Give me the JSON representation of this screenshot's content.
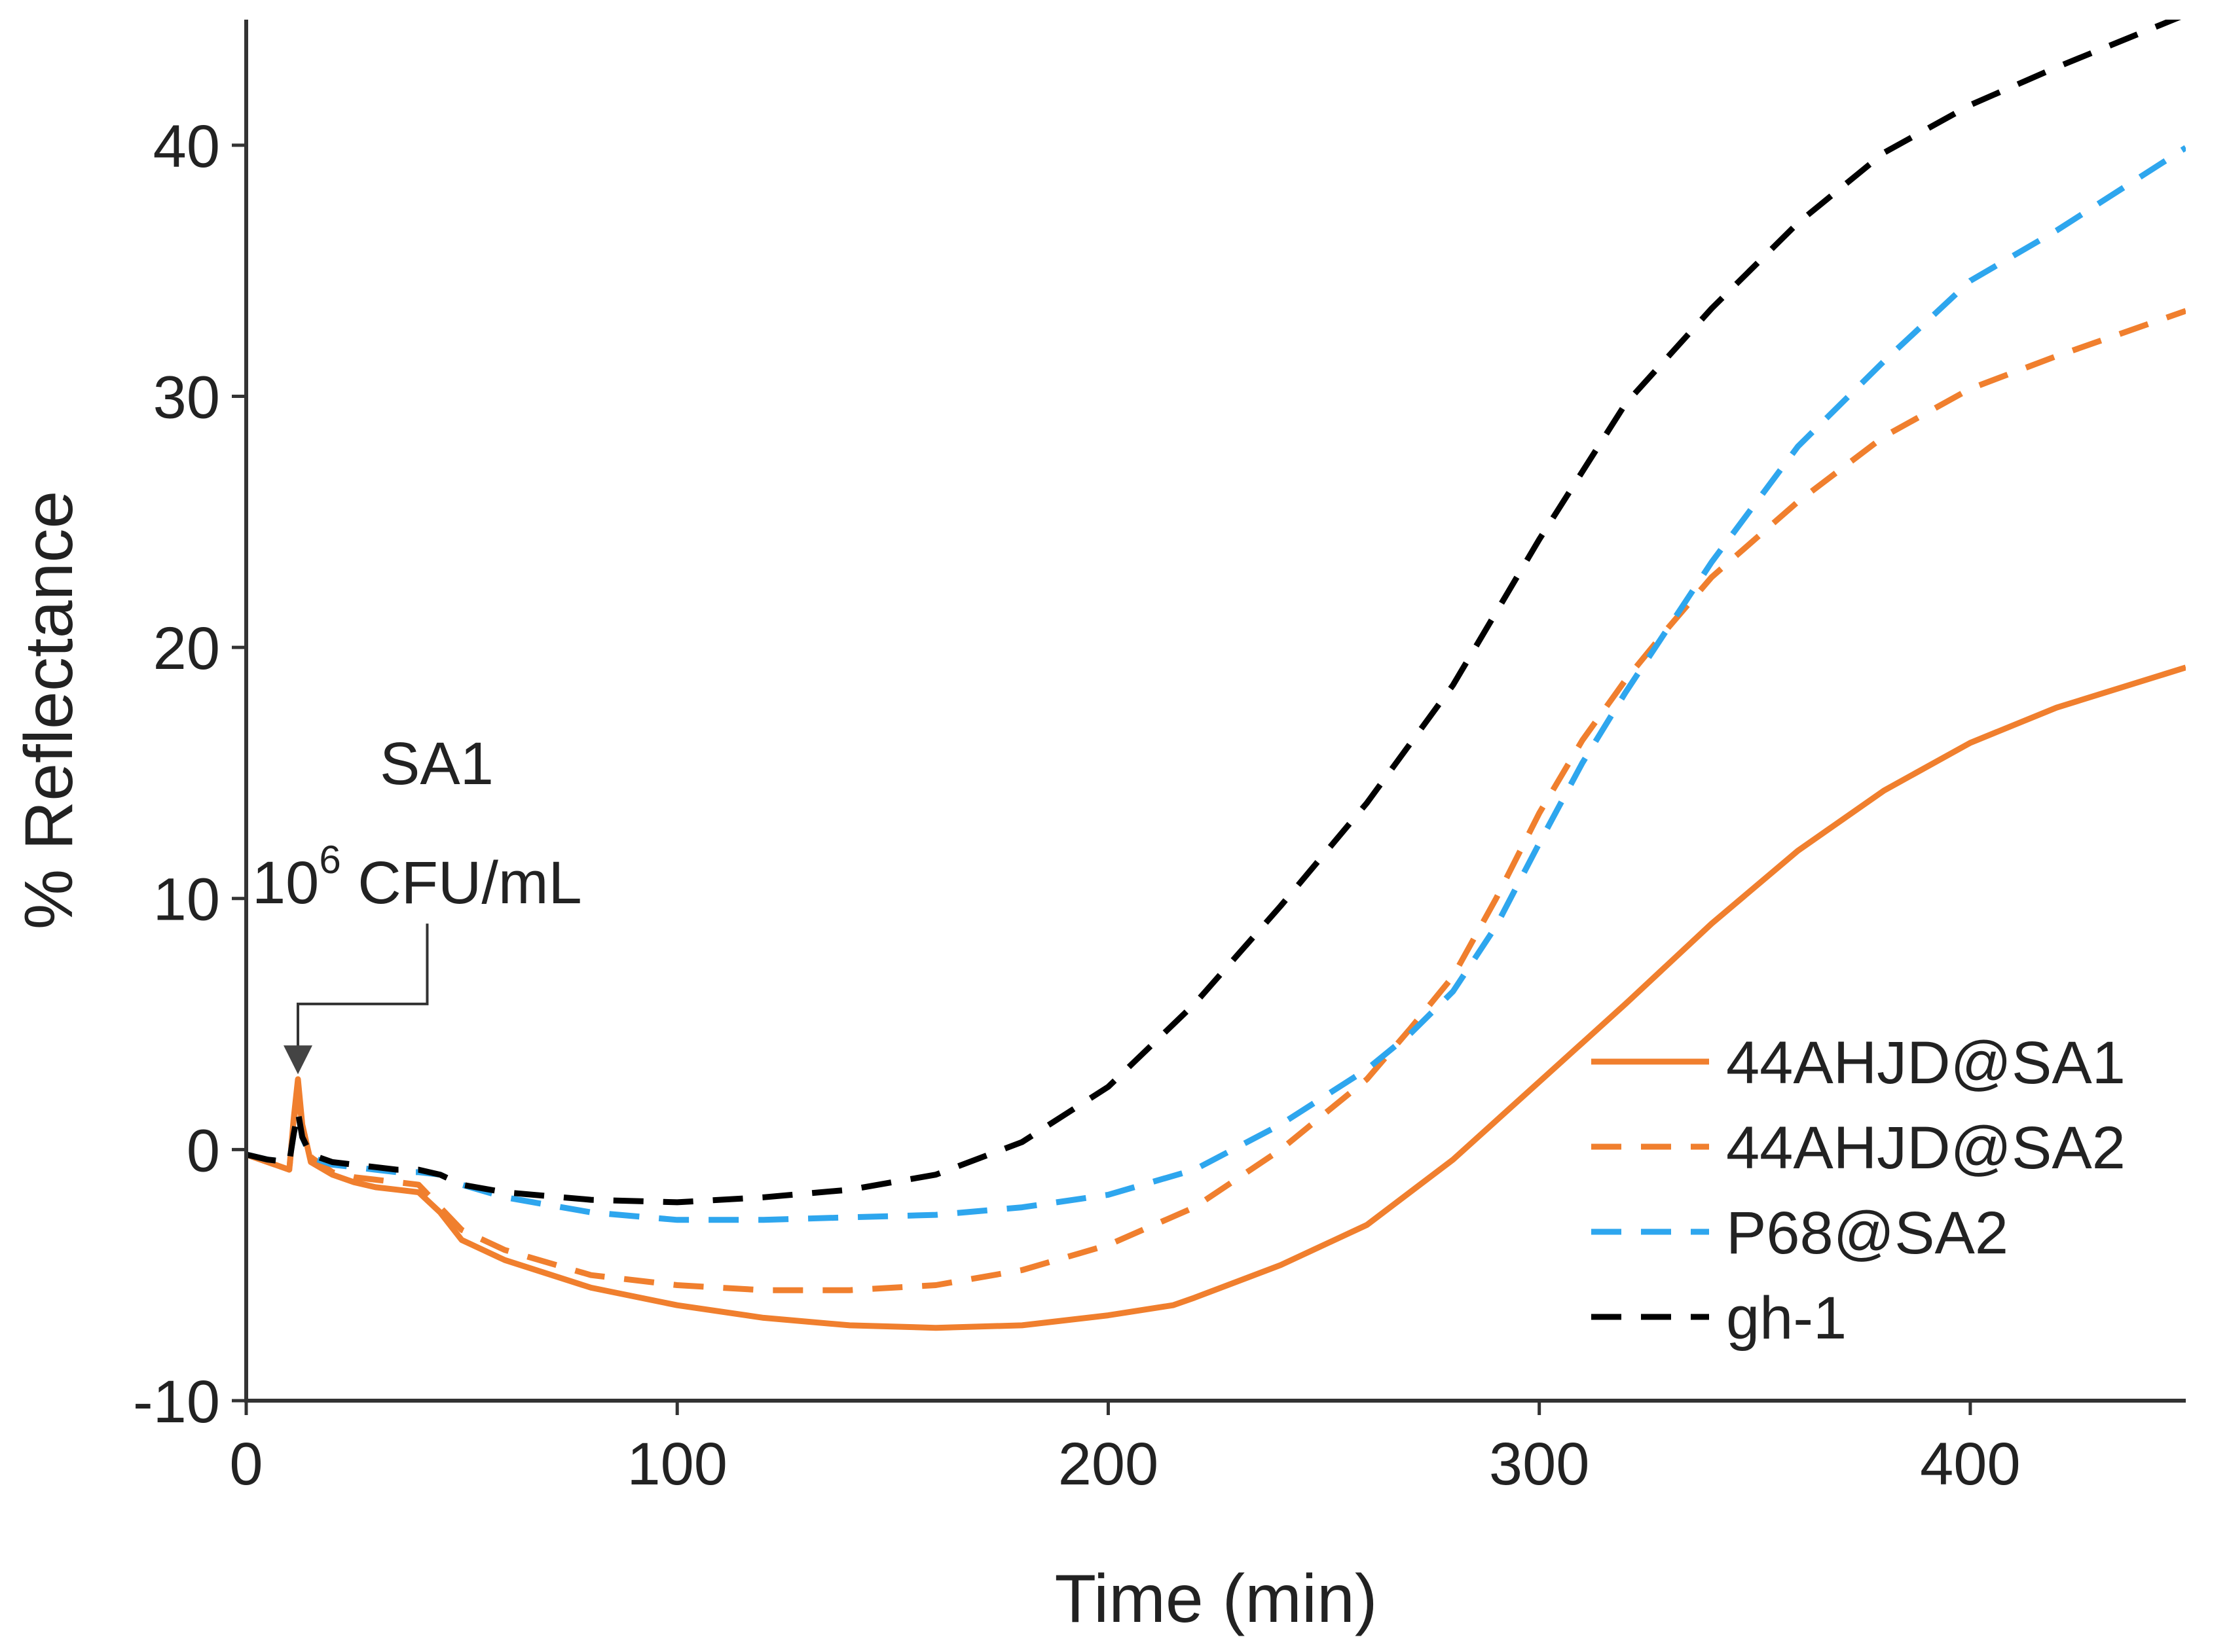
{
  "chart_data": {
    "type": "line",
    "title": "",
    "xlabel": "Time (min)",
    "ylabel": "% Reflectance",
    "xlim": [
      0,
      450
    ],
    "ylim": [
      -10,
      45
    ],
    "xticks": [
      0,
      100,
      200,
      300,
      400
    ],
    "yticks": [
      -10,
      0,
      10,
      20,
      30,
      40
    ],
    "xtick_labels": [
      "0",
      "100",
      "200",
      "300",
      "400"
    ],
    "ytick_labels": [
      "-10",
      "0",
      "10",
      "20",
      "30",
      "40"
    ],
    "grid": false,
    "legend_position": "right-middle",
    "annotation": {
      "line1": "SA1",
      "line2_base": "10",
      "line2_sup": "6",
      "line2_rest": " CFU/mL",
      "arrow_x": 12,
      "arrow_y": 3,
      "elbow_x": 42,
      "elbow_y": 5.8
    },
    "series": [
      {
        "name": "44AHJD@SA1",
        "color": "#F07F2E",
        "dash": "solid",
        "x": [
          0,
          5,
          10,
          11,
          12,
          13,
          15,
          20,
          25,
          30,
          35,
          40,
          45,
          50,
          60,
          80,
          100,
          120,
          140,
          160,
          180,
          200,
          215,
          220,
          240,
          260,
          280,
          300,
          320,
          340,
          360,
          380,
          400,
          420,
          450
        ],
        "y": [
          -0.2,
          -0.5,
          -0.8,
          1.2,
          2.8,
          1.0,
          -0.5,
          -1.0,
          -1.3,
          -1.5,
          -1.6,
          -1.7,
          -2.5,
          -3.6,
          -4.4,
          -5.5,
          -6.2,
          -6.7,
          -7.0,
          -7.1,
          -7.0,
          -6.6,
          -6.2,
          -5.9,
          -4.6,
          -3.0,
          -0.4,
          2.7,
          5.8,
          9.0,
          11.9,
          14.3,
          16.2,
          17.6,
          19.2
        ]
      },
      {
        "name": "44AHJD@SA2",
        "color": "#F07F2E",
        "dash": "dashed",
        "x": [
          0,
          5,
          10,
          11,
          12,
          13,
          15,
          20,
          25,
          30,
          35,
          40,
          45,
          50,
          60,
          80,
          100,
          120,
          140,
          160,
          180,
          200,
          220,
          240,
          260,
          270,
          280,
          290,
          300,
          310,
          320,
          330,
          340,
          360,
          380,
          400,
          420,
          450
        ],
        "y": [
          -0.2,
          -0.5,
          -0.8,
          1.0,
          2.5,
          0.9,
          -0.3,
          -0.9,
          -1.1,
          -1.2,
          -1.3,
          -1.4,
          -2.3,
          -3.2,
          -4.0,
          -5.0,
          -5.4,
          -5.6,
          -5.6,
          -5.4,
          -4.8,
          -3.8,
          -2.3,
          0.0,
          2.8,
          4.8,
          6.9,
          10.0,
          13.4,
          16.3,
          18.7,
          20.8,
          22.8,
          25.8,
          28.4,
          30.3,
          31.6,
          33.4
        ]
      },
      {
        "name": "P68@SA2",
        "color": "#2EA6EE",
        "dash": "dashed",
        "x": [
          0,
          5,
          10,
          11,
          12,
          13,
          15,
          20,
          25,
          30,
          35,
          40,
          45,
          50,
          60,
          80,
          100,
          120,
          140,
          160,
          180,
          200,
          220,
          240,
          260,
          270,
          280,
          290,
          300,
          310,
          320,
          330,
          340,
          360,
          380,
          390,
          400,
          420,
          450
        ],
        "y": [
          -0.2,
          -0.4,
          -0.5,
          0.6,
          1.5,
          0.5,
          -0.3,
          -0.6,
          -0.7,
          -0.8,
          -0.9,
          -0.9,
          -1.0,
          -1.4,
          -1.9,
          -2.5,
          -2.8,
          -2.8,
          -2.7,
          -2.6,
          -2.3,
          -1.8,
          -0.8,
          1.0,
          3.2,
          4.6,
          6.3,
          8.9,
          12.2,
          15.4,
          18.2,
          20.8,
          23.4,
          28.0,
          31.4,
          33.0,
          34.6,
          36.6,
          39.9
        ]
      },
      {
        "name": "gh-1",
        "color": "#000000",
        "dash": "dashed",
        "x": [
          0,
          5,
          10,
          11,
          12,
          13,
          15,
          20,
          25,
          30,
          35,
          40,
          45,
          50,
          60,
          80,
          100,
          120,
          140,
          160,
          180,
          200,
          220,
          240,
          260,
          280,
          300,
          320,
          340,
          360,
          380,
          400,
          420,
          450
        ],
        "y": [
          -0.2,
          -0.4,
          -0.5,
          0.6,
          1.5,
          0.5,
          -0.2,
          -0.5,
          -0.6,
          -0.7,
          -0.8,
          -0.8,
          -1.0,
          -1.4,
          -1.7,
          -2.0,
          -2.1,
          -1.9,
          -1.6,
          -1.0,
          0.3,
          2.5,
          5.8,
          9.7,
          13.8,
          18.5,
          24.3,
          29.7,
          33.5,
          36.9,
          39.7,
          41.6,
          43.1,
          45.2
        ]
      }
    ]
  }
}
